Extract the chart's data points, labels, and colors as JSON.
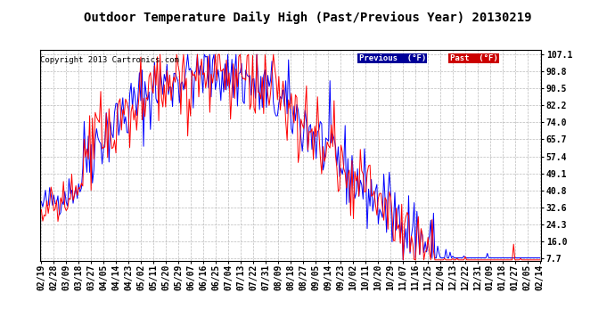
{
  "title": "Outdoor Temperature Daily High (Past/Previous Year) 20130219",
  "copyright": "Copyright 2013 Cartronics.com",
  "ylabel_values": [
    7.7,
    16.0,
    24.3,
    32.6,
    40.8,
    49.1,
    57.4,
    65.7,
    74.0,
    82.2,
    90.5,
    98.8,
    107.1
  ],
  "previous_color": "#0000ff",
  "past_color": "#ff0000",
  "legend_prev_bg": "#000099",
  "legend_past_bg": "#cc0000",
  "background_color": "#ffffff",
  "plot_bg": "#ffffff",
  "grid_color": "#aaaaaa",
  "title_fontsize": 10,
  "tick_fontsize": 7,
  "copyright_fontsize": 6.5,
  "x_tick_labels": [
    "02/19",
    "02/28",
    "03/09",
    "03/18",
    "03/27",
    "04/05",
    "04/14",
    "04/23",
    "05/02",
    "05/11",
    "05/20",
    "05/29",
    "06/07",
    "06/16",
    "06/25",
    "07/04",
    "07/13",
    "07/22",
    "07/31",
    "08/09",
    "08/18",
    "08/27",
    "09/05",
    "09/14",
    "09/23",
    "10/02",
    "10/11",
    "10/20",
    "10/29",
    "11/07",
    "11/16",
    "11/25",
    "12/04",
    "12/13",
    "12/22",
    "12/31",
    "01/09",
    "01/18",
    "01/27",
    "02/05",
    "02/14"
  ],
  "seed": 42,
  "n_days": 362
}
